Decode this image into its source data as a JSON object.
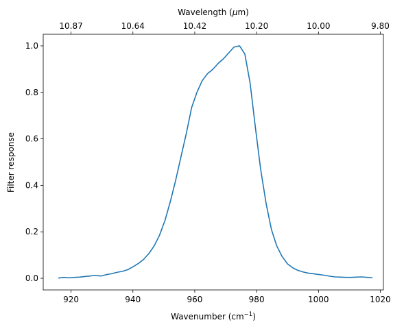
{
  "chart_data": {
    "type": "line",
    "xlabel_main": "Wavenumber (cm",
    "xlabel_sup": "−1",
    "xlabel_end": ")",
    "ylabel": "Filter response",
    "top_xlabel_main": "Wavelength (",
    "top_xlabel_mu": "μ",
    "top_xlabel_end": "m)",
    "xlim": [
      911,
      1021
    ],
    "ylim": [
      -0.05,
      1.05
    ],
    "x_ticks": [
      920,
      940,
      960,
      980,
      1000,
      1020
    ],
    "y_ticks": [
      0.0,
      0.2,
      0.4,
      0.6,
      0.8,
      1.0
    ],
    "y_tick_labels": [
      "0.0",
      "0.2",
      "0.4",
      "0.6",
      "0.8",
      "1.0"
    ],
    "top_ticks": [
      {
        "wavenumber": 920.0,
        "label": "10.87"
      },
      {
        "wavenumber": 940.0,
        "label": "10.64"
      },
      {
        "wavenumber": 960.0,
        "label": "10.42"
      },
      {
        "wavenumber": 980.0,
        "label": "10.20"
      },
      {
        "wavenumber": 1000.0,
        "label": "10.00"
      },
      {
        "wavenumber": 1020.0,
        "label": "9.80"
      }
    ],
    "color": "#1f77b4",
    "series": [
      {
        "x": [
          915.9,
          917.7,
          919.4,
          921.1,
          922.8,
          924.6,
          926.3,
          927.4,
          928.0,
          929.7,
          931.5,
          933.2,
          934.9,
          936.6,
          938.3,
          940.1,
          941.8,
          943.5,
          945.2,
          946.9,
          948.6,
          950.4,
          952.1,
          953.8,
          955.5,
          957.3,
          959.0,
          960.7,
          962.4,
          964.1,
          965.9,
          967.6,
          969.3,
          971.0,
          972.7,
          974.5,
          976.2,
          977.9,
          979.6,
          981.3,
          983.1,
          984.8,
          986.5,
          988.2,
          990.0,
          991.7,
          993.4,
          995.1,
          996.8,
          998.6,
          1000.3,
          1002.0,
          1003.7,
          1005.4,
          1007.2,
          1008.9,
          1010.6,
          1012.3,
          1014.0,
          1015.8,
          1017.5
        ],
        "y": [
          0.001,
          0.004,
          0.002,
          0.004,
          0.005,
          0.008,
          0.01,
          0.013,
          0.012,
          0.01,
          0.016,
          0.02,
          0.026,
          0.03,
          0.037,
          0.05,
          0.064,
          0.082,
          0.107,
          0.14,
          0.185,
          0.25,
          0.33,
          0.42,
          0.52,
          0.625,
          0.735,
          0.8,
          0.85,
          0.88,
          0.9,
          0.925,
          0.945,
          0.97,
          0.995,
          1.0,
          0.965,
          0.84,
          0.65,
          0.47,
          0.32,
          0.21,
          0.14,
          0.095,
          0.062,
          0.045,
          0.034,
          0.027,
          0.022,
          0.019,
          0.016,
          0.013,
          0.009,
          0.006,
          0.005,
          0.004,
          0.004,
          0.005,
          0.006,
          0.004,
          0.002
        ]
      }
    ]
  }
}
